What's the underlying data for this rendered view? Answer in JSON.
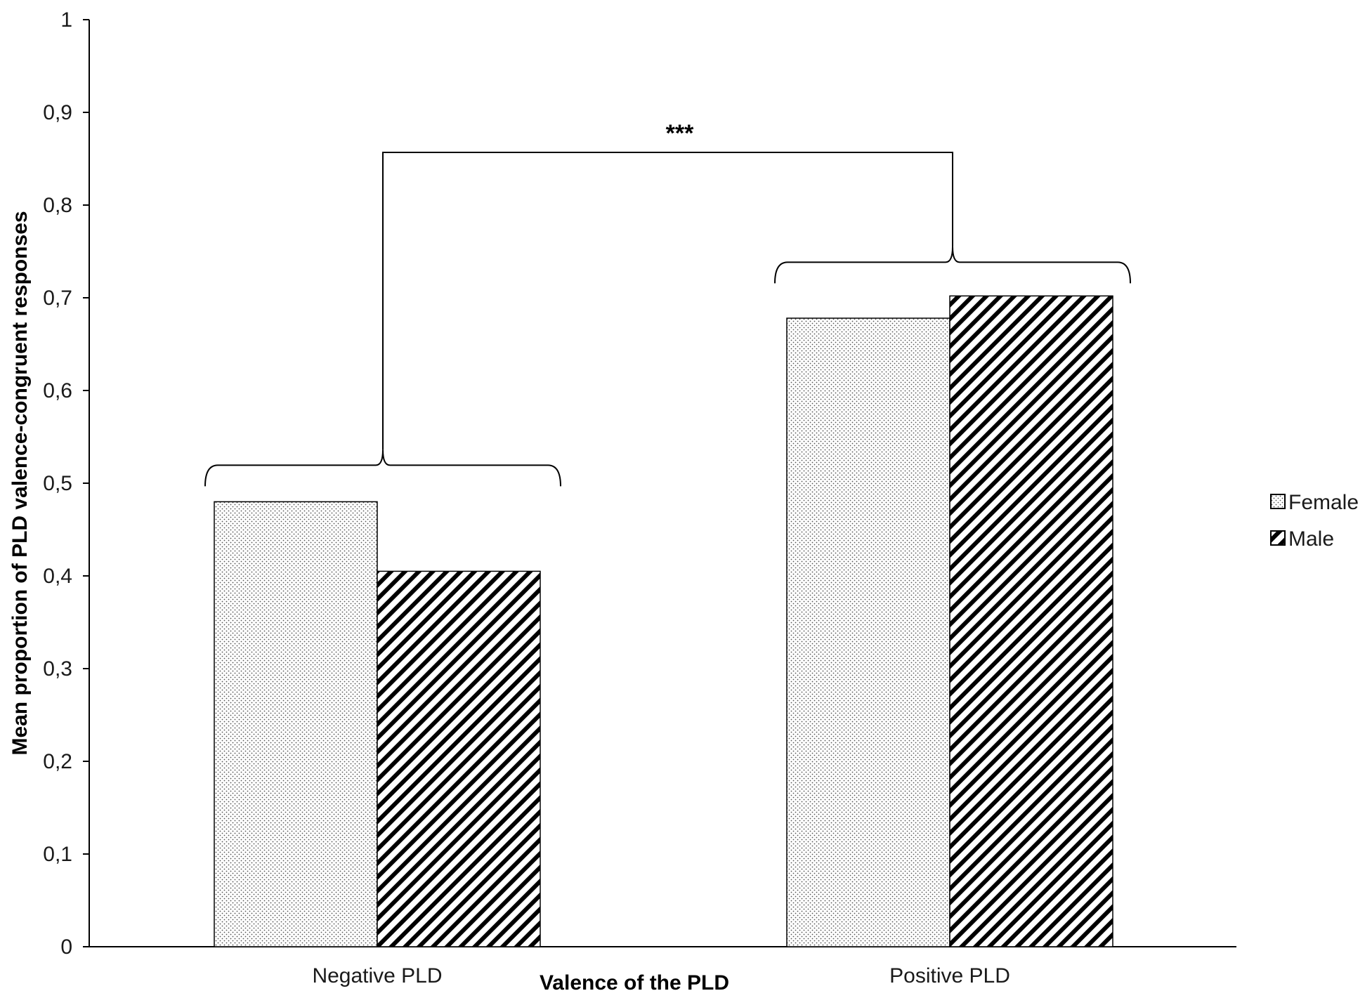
{
  "chart_data": {
    "type": "bar",
    "title": "",
    "xlabel": "Valence of the PLD",
    "ylabel": "Mean proportion of PLD valence-congruent responses",
    "categories": [
      "Negative PLD",
      "Positive PLD"
    ],
    "series": [
      {
        "name": "Female",
        "values": [
          0.48,
          0.678
        ],
        "pattern": "dots"
      },
      {
        "name": "Male",
        "values": [
          0.405,
          0.702
        ],
        "pattern": "diagonal-hatch"
      }
    ],
    "ylim": [
      0,
      1
    ],
    "yticks": [
      "0",
      "0,1",
      "0,2",
      "0,3",
      "0,4",
      "0,5",
      "0,6",
      "0,7",
      "0,8",
      "0,9",
      "1"
    ],
    "grid": false,
    "legend_position": "right",
    "annotations": [
      {
        "text": "***",
        "type": "significance-bracket",
        "between": [
          "Negative PLD",
          "Positive PLD"
        ]
      }
    ]
  }
}
